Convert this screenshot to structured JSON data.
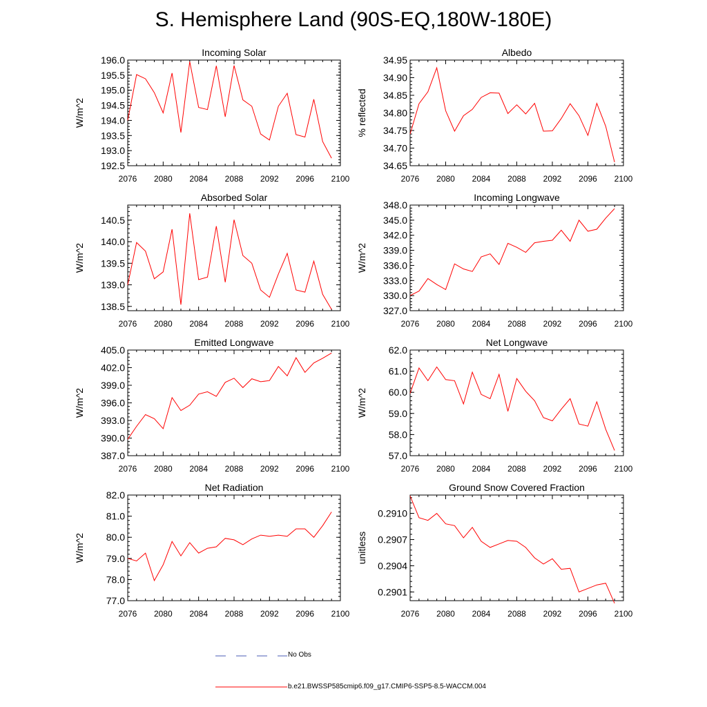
{
  "title": "S. Hemisphere Land (90S-EQ,180W-180E)",
  "colors": {
    "model_line": "#ff0000",
    "obs_line": "#4a5bb5",
    "axis": "#000000"
  },
  "legend": {
    "obs_label": "No Obs",
    "model_label": "b.e21.BWSSP585cmip6.f09_g17.CMIP6-SSP5-8.5-WACCM.004"
  },
  "chart_data": [
    {
      "type": "line",
      "title": "Incoming Solar",
      "ylabel": "W/m^2",
      "xlim": [
        2076,
        2100
      ],
      "ylim": [
        192.5,
        196.0
      ],
      "xticks": [
        "2076",
        "2080",
        "2084",
        "2088",
        "2092",
        "2096",
        "2100"
      ],
      "yticks": [
        "192.5",
        "193.0",
        "193.5",
        "194.0",
        "194.5",
        "195.0",
        "195.5",
        "196.0"
      ],
      "series": [
        {
          "name": "b.e21.BWSSP585cmip6.f09_g17.CMIP6-SSP5-8.5-WACCM.004",
          "x": [
            2076,
            2077,
            2078,
            2079,
            2080,
            2081,
            2082,
            2083,
            2084,
            2085,
            2086,
            2087,
            2088,
            2089,
            2090,
            2091,
            2092,
            2093,
            2094,
            2095,
            2096,
            2097,
            2098,
            2099
          ],
          "values": [
            194.0,
            195.52,
            195.38,
            194.92,
            194.25,
            195.57,
            193.6,
            195.95,
            194.43,
            194.36,
            195.81,
            194.12,
            195.82,
            194.68,
            194.47,
            193.55,
            193.35,
            194.47,
            194.9,
            193.53,
            193.45,
            194.7,
            193.3,
            192.75
          ]
        }
      ]
    },
    {
      "type": "line",
      "title": "Albedo",
      "ylabel": "% reflected",
      "xlim": [
        2076,
        2100
      ],
      "ylim": [
        34.65,
        34.95
      ],
      "xticks": [
        "2076",
        "2080",
        "2084",
        "2088",
        "2092",
        "2096",
        "2100"
      ],
      "yticks": [
        "34.65",
        "34.70",
        "34.75",
        "34.80",
        "34.85",
        "34.90",
        "34.95"
      ],
      "series": [
        {
          "name": "b.e21.BWSSP585cmip6.f09_g17.CMIP6-SSP5-8.5-WACCM.004",
          "x": [
            2076,
            2077,
            2078,
            2079,
            2080,
            2081,
            2082,
            2083,
            2084,
            2085,
            2086,
            2087,
            2088,
            2089,
            2090,
            2091,
            2092,
            2093,
            2094,
            2095,
            2096,
            2097,
            2098,
            2099
          ],
          "values": [
            34.74,
            34.826,
            34.86,
            34.928,
            34.806,
            34.748,
            34.792,
            34.81,
            34.844,
            34.857,
            34.856,
            34.798,
            34.823,
            34.797,
            34.827,
            34.748,
            34.749,
            34.784,
            34.826,
            34.792,
            34.736,
            34.827,
            34.762,
            34.66
          ]
        }
      ]
    },
    {
      "type": "line",
      "title": "Absorbed Solar",
      "ylabel": "W/m^2",
      "xlim": [
        2076,
        2100
      ],
      "ylim": [
        138.4,
        140.85
      ],
      "xticks": [
        "2076",
        "2080",
        "2084",
        "2088",
        "2092",
        "2096",
        "2100"
      ],
      "yticks": [
        "138.5",
        "139.0",
        "139.5",
        "140.0",
        "140.5"
      ],
      "series": [
        {
          "name": "b.e21.BWSSP585cmip6.f09_g17.CMIP6-SSP5-8.5-WACCM.004",
          "x": [
            2076,
            2077,
            2078,
            2079,
            2080,
            2081,
            2082,
            2083,
            2084,
            2085,
            2086,
            2087,
            2088,
            2089,
            2090,
            2091,
            2092,
            2093,
            2094,
            2095,
            2096,
            2097,
            2098,
            2099
          ],
          "values": [
            139.0,
            139.98,
            139.78,
            139.14,
            139.3,
            140.29,
            138.54,
            140.66,
            139.12,
            139.18,
            140.36,
            139.06,
            140.51,
            139.68,
            139.5,
            138.88,
            138.71,
            139.25,
            139.73,
            138.88,
            138.83,
            139.55,
            138.78,
            138.43
          ]
        }
      ]
    },
    {
      "type": "line",
      "title": "Incoming Longwave",
      "ylabel": "W/m^2",
      "xlim": [
        2076,
        2100
      ],
      "ylim": [
        327.0,
        348.0
      ],
      "xticks": [
        "2076",
        "2080",
        "2084",
        "2088",
        "2092",
        "2096",
        "2100"
      ],
      "yticks": [
        "327.0",
        "330.0",
        "333.0",
        "336.0",
        "339.0",
        "342.0",
        "345.0",
        "348.0"
      ],
      "series": [
        {
          "name": "b.e21.BWSSP585cmip6.f09_g17.CMIP6-SSP5-8.5-WACCM.004",
          "x": [
            2076,
            2077,
            2078,
            2079,
            2080,
            2081,
            2082,
            2083,
            2084,
            2085,
            2086,
            2087,
            2088,
            2089,
            2090,
            2091,
            2092,
            2093,
            2094,
            2095,
            2096,
            2097,
            2098,
            2099
          ],
          "values": [
            330.0,
            330.9,
            333.4,
            332.2,
            331.2,
            336.3,
            335.3,
            334.8,
            337.7,
            338.3,
            336.2,
            340.4,
            339.6,
            338.6,
            340.5,
            340.8,
            341.0,
            343.0,
            340.8,
            345.0,
            342.8,
            343.2,
            345.4,
            347.3
          ]
        }
      ]
    },
    {
      "type": "line",
      "title": "Emitted Longwave",
      "ylabel": "W/m^2",
      "xlim": [
        2076,
        2100
      ],
      "ylim": [
        387.0,
        405.0
      ],
      "xticks": [
        "2076",
        "2080",
        "2084",
        "2088",
        "2092",
        "2096",
        "2100"
      ],
      "yticks": [
        "387.0",
        "390.0",
        "393.0",
        "396.0",
        "399.0",
        "402.0",
        "405.0"
      ],
      "series": [
        {
          "name": "b.e21.BWSSP585cmip6.f09_g17.CMIP6-SSP5-8.5-WACCM.004",
          "x": [
            2076,
            2077,
            2078,
            2079,
            2080,
            2081,
            2082,
            2083,
            2084,
            2085,
            2086,
            2087,
            2088,
            2089,
            2090,
            2091,
            2092,
            2093,
            2094,
            2095,
            2096,
            2097,
            2098,
            2099
          ],
          "values": [
            389.8,
            392.0,
            394.0,
            393.3,
            391.6,
            396.9,
            394.7,
            395.6,
            397.5,
            397.9,
            397.1,
            399.5,
            400.2,
            398.6,
            400.1,
            399.6,
            399.8,
            402.2,
            400.6,
            403.7,
            401.2,
            402.8,
            403.6,
            404.5
          ]
        }
      ]
    },
    {
      "type": "line",
      "title": "Net Longwave",
      "ylabel": "W/m^2",
      "xlim": [
        2076,
        2100
      ],
      "ylim": [
        57.0,
        62.0
      ],
      "xticks": [
        "2076",
        "2080",
        "2084",
        "2088",
        "2092",
        "2096",
        "2100"
      ],
      "yticks": [
        "57.0",
        "58.0",
        "59.0",
        "60.0",
        "61.0",
        "62.0"
      ],
      "series": [
        {
          "name": "b.e21.BWSSP585cmip6.f09_g17.CMIP6-SSP5-8.5-WACCM.004",
          "x": [
            2076,
            2077,
            2078,
            2079,
            2080,
            2081,
            2082,
            2083,
            2084,
            2085,
            2086,
            2087,
            2088,
            2089,
            2090,
            2091,
            2092,
            2093,
            2094,
            2095,
            2096,
            2097,
            2098,
            2099
          ],
          "values": [
            59.95,
            61.15,
            60.55,
            61.2,
            60.6,
            60.55,
            59.45,
            60.95,
            59.9,
            59.7,
            60.85,
            59.1,
            60.65,
            60.05,
            59.6,
            58.8,
            58.65,
            59.2,
            59.7,
            58.5,
            58.4,
            59.55,
            58.25,
            57.25
          ]
        }
      ]
    },
    {
      "type": "line",
      "title": "Net Radiation",
      "ylabel": "W/m^2",
      "xlim": [
        2076,
        2100
      ],
      "ylim": [
        77.0,
        82.0
      ],
      "xticks": [
        "2076",
        "2080",
        "2084",
        "2088",
        "2092",
        "2096",
        "2100"
      ],
      "yticks": [
        "77.0",
        "78.0",
        "79.0",
        "80.0",
        "81.0",
        "82.0"
      ],
      "series": [
        {
          "name": "b.e21.BWSSP585cmip6.f09_g17.CMIP6-SSP5-8.5-WACCM.004",
          "x": [
            2076,
            2077,
            2078,
            2079,
            2080,
            2081,
            2082,
            2083,
            2084,
            2085,
            2086,
            2087,
            2088,
            2089,
            2090,
            2091,
            2092,
            2093,
            2094,
            2095,
            2096,
            2097,
            2098,
            2099
          ],
          "values": [
            79.0,
            78.88,
            79.25,
            77.95,
            78.7,
            79.8,
            79.12,
            79.75,
            79.25,
            79.48,
            79.55,
            79.95,
            79.88,
            79.65,
            79.92,
            80.1,
            80.05,
            80.1,
            80.05,
            80.4,
            80.4,
            80.0,
            80.55,
            81.2
          ]
        }
      ]
    },
    {
      "type": "line",
      "title": "Ground Snow Covered Fraction",
      "ylabel": "unitless",
      "xlim": [
        2076,
        2100
      ],
      "ylim": [
        0.29,
        0.29121
      ],
      "xticks": [
        "2076",
        "2080",
        "2084",
        "2088",
        "2092",
        "2096",
        "2100"
      ],
      "yticks": [
        "0.2901",
        "0.2904",
        "0.2907",
        "0.2910"
      ],
      "series": [
        {
          "name": "b.e21.BWSSP585cmip6.f09_g17.CMIP6-SSP5-8.5-WACCM.004",
          "x": [
            2076,
            2077,
            2078,
            2079,
            2080,
            2081,
            2082,
            2083,
            2084,
            2085,
            2086,
            2087,
            2088,
            2089,
            2090,
            2091,
            2092,
            2093,
            2094,
            2095,
            2096,
            2097,
            2098,
            2099
          ],
          "values": [
            0.2912,
            0.29095,
            0.29092,
            0.291,
            0.29088,
            0.29086,
            0.29072,
            0.29084,
            0.29068,
            0.29061,
            0.29065,
            0.29069,
            0.29068,
            0.29061,
            0.29049,
            0.29042,
            0.29048,
            0.29036,
            0.29037,
            0.2901,
            0.29014,
            0.29018,
            0.2902,
            0.28997
          ]
        }
      ]
    }
  ]
}
